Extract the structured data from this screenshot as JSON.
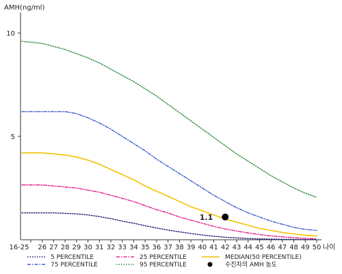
{
  "chart_data": {
    "type": "line",
    "ylabel": "AMH(ng/ml)",
    "xlabel": "나이",
    "ylim": [
      0,
      11
    ],
    "yticks": [
      5,
      10
    ],
    "x_tick_labels": [
      "16-25",
      "26",
      "27",
      "28",
      "29",
      "30",
      "31",
      "32",
      "33",
      "34",
      "35",
      "36",
      "37",
      "38",
      "39",
      "40",
      "41",
      "42",
      "43",
      "44",
      "45",
      "46",
      "47",
      "48",
      "49",
      "50"
    ],
    "grid": false,
    "legend_position": "bottom",
    "series": [
      {
        "name": "95 PERCENTILE",
        "color": "#2e8b3c",
        "dash": "dotted",
        "values": [
          9.6,
          9.5,
          9.35,
          9.2,
          9.0,
          8.8,
          8.55,
          8.25,
          7.95,
          7.65,
          7.3,
          6.95,
          6.55,
          6.15,
          5.75,
          5.35,
          4.95,
          4.55,
          4.15,
          3.8,
          3.45,
          3.1,
          2.8,
          2.5,
          2.25,
          2.05
        ]
      },
      {
        "name": "75 PERCENTILE",
        "color": "#3a5fcd",
        "dash": "dashdot",
        "values": [
          6.2,
          6.2,
          6.2,
          6.2,
          6.1,
          5.9,
          5.65,
          5.35,
          5.0,
          4.65,
          4.3,
          3.9,
          3.55,
          3.2,
          2.85,
          2.5,
          2.15,
          1.85,
          1.55,
          1.3,
          1.1,
          0.9,
          0.75,
          0.6,
          0.5,
          0.45
        ]
      },
      {
        "name": "MEDIAN(50 PERCENTILE)",
        "color": "#f2c200",
        "dash": "solid",
        "values": [
          4.2,
          4.2,
          4.15,
          4.1,
          4.0,
          3.85,
          3.65,
          3.4,
          3.15,
          2.9,
          2.6,
          2.35,
          2.1,
          1.85,
          1.6,
          1.4,
          1.2,
          1.0,
          0.85,
          0.7,
          0.55,
          0.45,
          0.35,
          0.28,
          0.22,
          0.18
        ]
      },
      {
        "name": "25 PERCENTILE",
        "color": "#e0218a",
        "dash": "dashdot",
        "values": [
          2.65,
          2.65,
          2.6,
          2.55,
          2.5,
          2.4,
          2.3,
          2.15,
          2.0,
          1.85,
          1.65,
          1.45,
          1.3,
          1.1,
          0.95,
          0.8,
          0.65,
          0.52,
          0.42,
          0.33,
          0.25,
          0.19,
          0.14,
          0.1,
          0.07,
          0.05
        ]
      },
      {
        "name": "5 PERCENTILE",
        "color": "#1a1a6e",
        "dash": "dotted",
        "values": [
          1.3,
          1.3,
          1.3,
          1.28,
          1.25,
          1.2,
          1.12,
          1.02,
          0.9,
          0.8,
          0.68,
          0.57,
          0.47,
          0.38,
          0.3,
          0.23,
          0.17,
          0.12,
          0.09,
          0.06,
          0.04,
          0.03,
          0.02,
          0.015,
          0.01,
          0.01
        ]
      }
    ],
    "patient_point": {
      "name": "수진자의 AMH 농도",
      "x": "42",
      "y": 1.1,
      "label": "1.1"
    }
  },
  "legend": [
    {
      "label": "5 PERCENTILE",
      "color": "#1a1a6e",
      "dash": "dotted"
    },
    {
      "label": "25 PERCENTILE",
      "color": "#e0218a",
      "dash": "dashdot"
    },
    {
      "label": "MEDIAN(50 PERCENTILE)",
      "color": "#f2c200",
      "dash": "solid"
    },
    {
      "label": "75 PERCENTILE",
      "color": "#3a5fcd",
      "dash": "dashdot"
    },
    {
      "label": "95 PERCENTILE",
      "color": "#2e8b3c",
      "dash": "dotted"
    },
    {
      "label": "수진자의 AMH 농도",
      "color": "#000000",
      "dash": "dot-marker"
    }
  ]
}
